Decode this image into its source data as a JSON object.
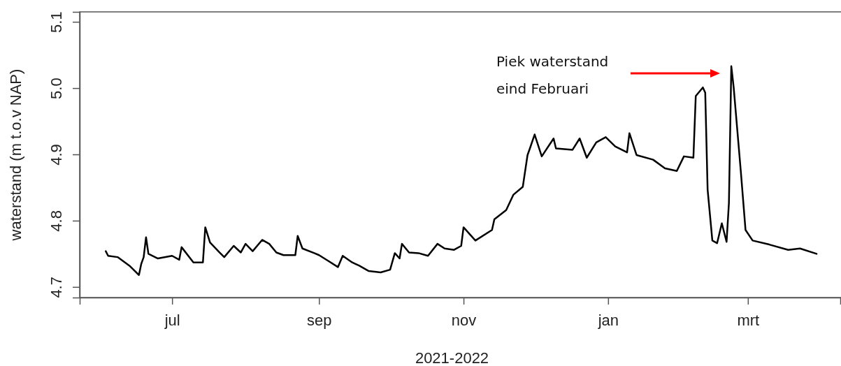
{
  "chart_data": {
    "type": "line",
    "xlabel": "2021-2022",
    "ylabel": "waterstand (m t.o.v NAP)",
    "annotations": [
      "Piek waterstand\neind Februari"
    ],
    "xlim": [
      "2021-05-23",
      "2022-04-09"
    ],
    "ylim": [
      4.684,
      5.115
    ],
    "xticks": [
      {
        "value": "2021-07-01",
        "label": "jul"
      },
      {
        "value": "2021-09-01",
        "label": "sep"
      },
      {
        "value": "2021-11-01",
        "label": "nov"
      },
      {
        "value": "2022-01-01",
        "label": "jan"
      },
      {
        "value": "2022-03-01",
        "label": "mrt"
      }
    ],
    "yticks": [
      {
        "value": 4.7,
        "label": "4.7"
      },
      {
        "value": 4.8,
        "label": "4.8"
      },
      {
        "value": 4.9,
        "label": "4.9"
      },
      {
        "value": 5,
        "label": "5.0"
      },
      {
        "value": 5.1,
        "label": "5.1"
      }
    ],
    "marker": "none",
    "line_style": "solid",
    "series": [
      {
        "color": "#000000",
        "x": [
          "2021-06-03",
          "2021-06-04",
          "2021-06-08",
          "2021-06-13",
          "2021-06-17",
          "2021-06-18",
          "2021-06-19",
          "2021-06-20",
          "2021-06-21",
          "2021-06-25",
          "2021-07-01",
          "2021-07-04",
          "2021-07-05",
          "2021-07-10",
          "2021-07-14",
          "2021-07-15",
          "2021-07-17",
          "2021-07-21",
          "2021-07-23",
          "2021-07-27",
          "2021-07-30",
          "2021-08-01",
          "2021-08-04",
          "2021-08-08",
          "2021-08-11",
          "2021-08-14",
          "2021-08-17",
          "2021-08-22",
          "2021-08-23",
          "2021-08-25",
          "2021-08-30",
          "2021-09-01",
          "2021-09-05",
          "2021-09-09",
          "2021-09-11",
          "2021-09-15",
          "2021-09-18",
          "2021-09-22",
          "2021-09-27",
          "2021-10-01",
          "2021-10-03",
          "2021-10-05",
          "2021-10-06",
          "2021-10-09",
          "2021-10-13",
          "2021-10-17",
          "2021-10-21",
          "2021-10-24",
          "2021-10-28",
          "2021-10-31",
          "2021-11-01",
          "2021-11-06",
          "2021-11-13",
          "2021-11-14",
          "2021-11-19",
          "2021-11-22",
          "2021-11-26",
          "2021-11-28",
          "2021-11-29",
          "2021-12-01",
          "2021-12-04",
          "2021-12-09",
          "2021-12-10",
          "2021-12-17",
          "2021-12-20",
          "2021-12-23",
          "2021-12-27",
          "2021-12-31",
          "2022-01-04",
          "2022-01-09",
          "2022-01-10",
          "2022-01-13",
          "2022-01-20",
          "2022-01-25",
          "2022-01-30",
          "2022-02-02",
          "2022-02-06",
          "2022-02-07",
          "2022-02-10",
          "2022-02-11",
          "2022-02-12",
          "2022-02-14",
          "2022-02-16",
          "2022-02-18",
          "2022-02-20",
          "2022-02-21",
          "2022-02-22",
          "2022-02-23",
          "2022-02-26",
          "2022-02-28",
          "2022-03-03",
          "2022-03-10",
          "2022-03-18",
          "2022-03-23",
          "2022-03-30"
        ],
        "values": [
          4.754,
          4.747,
          4.745,
          4.732,
          4.718,
          4.735,
          4.745,
          4.775,
          4.75,
          4.743,
          4.747,
          4.741,
          4.76,
          4.737,
          4.737,
          4.79,
          4.767,
          4.752,
          4.745,
          4.762,
          4.752,
          4.765,
          4.754,
          4.771,
          4.765,
          4.752,
          4.748,
          4.748,
          4.777,
          4.758,
          4.751,
          4.748,
          4.739,
          4.73,
          4.747,
          4.737,
          4.732,
          4.724,
          4.722,
          4.726,
          4.751,
          4.743,
          4.765,
          4.752,
          4.751,
          4.747,
          4.765,
          4.758,
          4.756,
          4.762,
          4.79,
          4.77,
          4.786,
          4.802,
          4.816,
          4.839,
          4.851,
          4.899,
          4.909,
          4.93,
          4.897,
          4.924,
          4.909,
          4.907,
          4.924,
          4.895,
          4.918,
          4.926,
          4.912,
          4.903,
          4.932,
          4.899,
          4.892,
          4.879,
          4.875,
          4.897,
          4.895,
          4.988,
          5.001,
          4.993,
          4.847,
          4.77,
          4.766,
          4.796,
          4.768,
          4.827,
          5.033,
          5.001,
          4.875,
          4.786,
          4.77,
          4.764,
          4.756,
          4.758,
          4.75
        ]
      }
    ]
  }
}
